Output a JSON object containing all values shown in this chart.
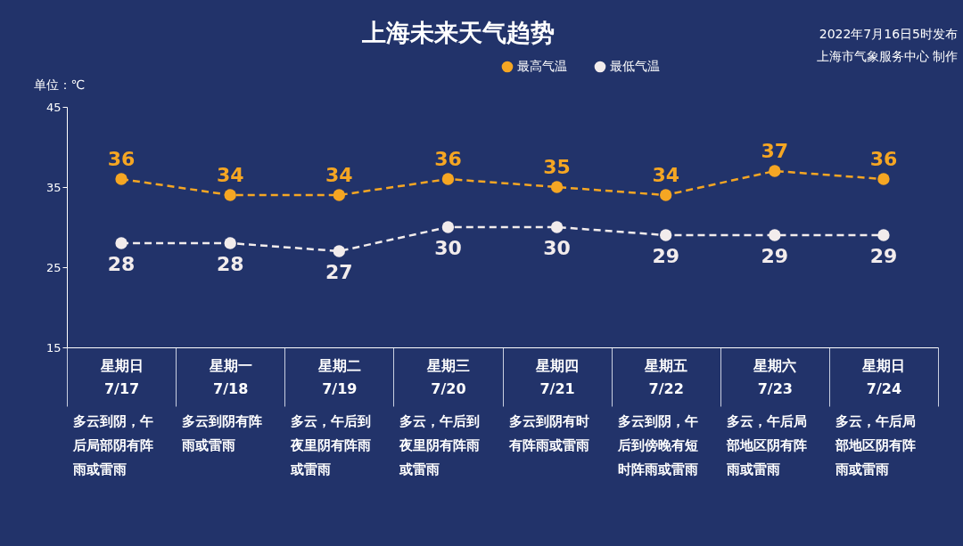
{
  "chart_data": {
    "type": "line",
    "title": "上海未来天气趋势",
    "ylabel": "单位：℃",
    "categories": [
      "星期日\n7/17",
      "星期一\n7/18",
      "星期二\n7/19",
      "星期三\n7/20",
      "星期四\n7/21",
      "星期五\n7/22",
      "星期六\n7/23",
      "星期日\n7/24"
    ],
    "series": [
      {
        "name": "最高气温",
        "color": "#f5a623",
        "values": [
          36,
          34,
          34,
          36,
          35,
          34,
          37,
          36
        ]
      },
      {
        "name": "最低气温",
        "color": "#f2ecec",
        "values": [
          28,
          28,
          27,
          30,
          30,
          29,
          29,
          29
        ]
      }
    ],
    "ylim": [
      15,
      45
    ],
    "yticks": [
      15,
      25,
      35,
      45
    ],
    "grid": false,
    "legend": "top right",
    "marker": "circle",
    "line_style": "dashed",
    "data_labels": true,
    "annotations": [
      "2022年7月16日5时发布",
      "上海市气象服务中心 制作",
      "多云到阴，午后局部阴有阵雨或雷雨",
      "多云到阴有阵雨或雷雨",
      "多云，午后到夜里阴有阵雨或雷雨",
      "多云，午后到夜里阴有阵雨或雷雨",
      "多云到阴有时有阵雨或雷雨",
      "多云到阴，午后到傍晚有短时阵雨或雷雨",
      "多云，午后局部地区阴有阵雨或雷雨",
      "多云，午后局部地区阴有阵雨或雷雨"
    ]
  }
}
